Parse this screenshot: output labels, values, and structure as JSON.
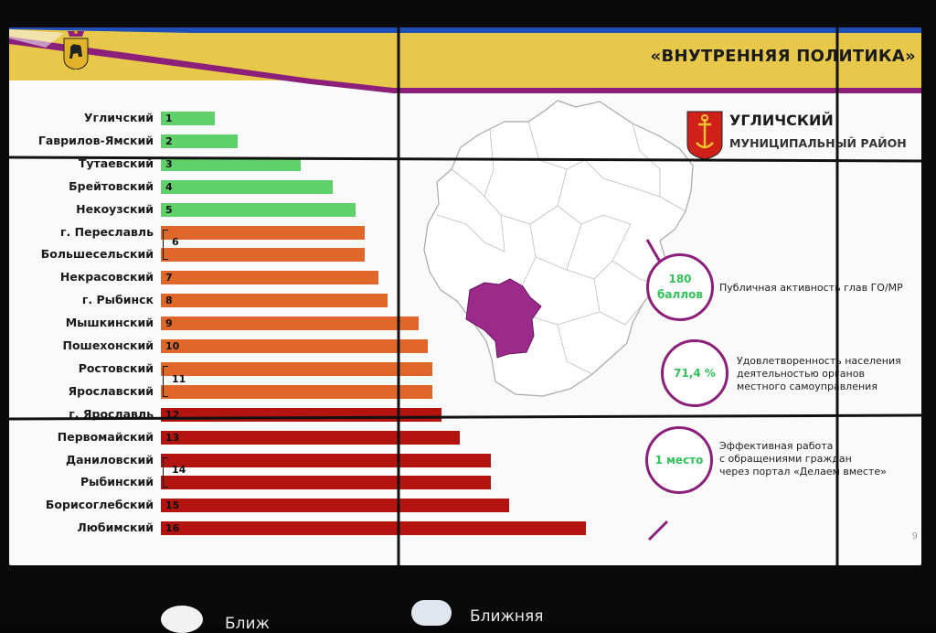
{
  "slide": {
    "title": "«ВНУТРЕННЯЯ ПОЛИТИКА»",
    "page_number": "9"
  },
  "district": {
    "name": "УГЛИЧСКИЙ",
    "subtitle": "МУНИЦИПАЛЬНЫЙ РАЙОН"
  },
  "kpis": [
    {
      "value_line1": "180",
      "value_line2": "баллов",
      "description": [
        "Публичная активность глав ГО/МР"
      ]
    },
    {
      "value_line1": "71,4 %",
      "value_line2": "",
      "description": [
        "Удовлетворенность населения",
        "деятельностью органов",
        "местного самоуправления"
      ]
    },
    {
      "value_line1": "1 место",
      "value_line2": "",
      "description": [
        "Эффективная работа",
        "с обращениями граждан",
        "через портал «Делаем вместе»"
      ]
    }
  ],
  "colors": {
    "green": "#5fd06a",
    "orange": "#e0672a",
    "red": "#b3140f",
    "purple": "#8b1f7a",
    "gold": "#e8c84a",
    "blue": "#1f4fb6"
  },
  "chart_data": {
    "type": "bar",
    "orientation": "horizontal",
    "categories": [
      "Угличский",
      "Гаврилов-Ямский",
      "Тутаевский",
      "Брейтовский",
      "Некоузский",
      "г. Переславль",
      "Большесельский",
      "Некрасовский",
      "г. Рыбинск",
      "Мышкинский",
      "Пошехонский",
      "Ростовский",
      "Ярославский",
      "г. Ярославль",
      "Первомайский",
      "Даниловский",
      "Рыбинский",
      "Борисоглебский",
      "Любимский"
    ],
    "ranks": [
      "1",
      "2",
      "3",
      "4",
      "5",
      "",
      "",
      "7",
      "8",
      "9",
      "10",
      "",
      "",
      "12",
      "13",
      "",
      "",
      "15",
      "16"
    ],
    "rank_colors": [
      "green",
      "green",
      "green",
      "green",
      "green",
      "orange",
      "orange",
      "orange",
      "orange",
      "orange",
      "orange",
      "orange",
      "orange",
      "red",
      "red",
      "red",
      "red",
      "red",
      "red"
    ],
    "values": [
      0.12,
      0.17,
      0.31,
      0.38,
      0.43,
      0.45,
      0.45,
      0.48,
      0.5,
      0.57,
      0.59,
      0.6,
      0.6,
      0.62,
      0.66,
      0.73,
      0.73,
      0.77,
      0.94
    ],
    "groups": [
      {
        "label": "6",
        "rows": [
          5,
          6
        ]
      },
      {
        "label": "11",
        "rows": [
          11,
          12
        ]
      },
      {
        "label": "14",
        "rows": [
          15,
          16
        ]
      }
    ]
  },
  "footer": {
    "caption_left": "Ближ",
    "caption_right": "Ближняя"
  }
}
